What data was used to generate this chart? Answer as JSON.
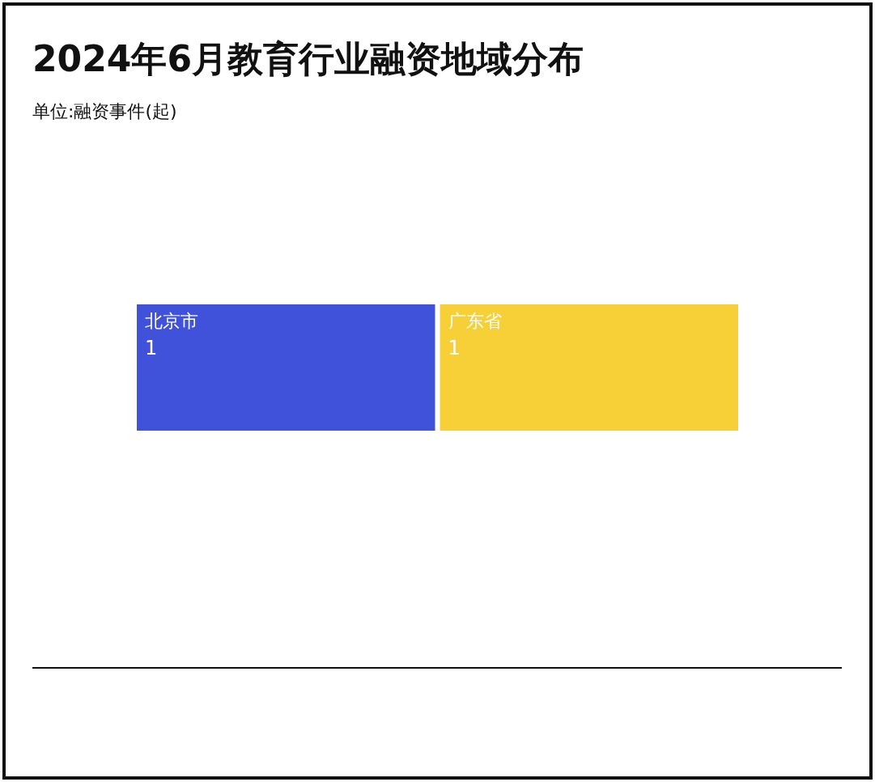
{
  "chart_data": {
    "type": "other",
    "title": "2024年6月教育行业融资地域分布",
    "subtitle": "单位:融资事件(起)",
    "categories": [
      "北京市",
      "广东省"
    ],
    "values": [
      1,
      1
    ],
    "colors": [
      "#4052d9",
      "#f7cf36"
    ],
    "data_labels": true
  }
}
